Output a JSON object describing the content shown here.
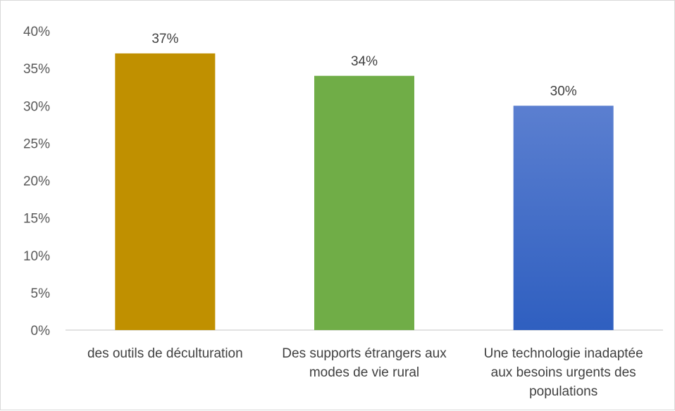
{
  "chart_data": {
    "type": "bar",
    "categories": [
      [
        "des outils de déculturation"
      ],
      [
        "Des supports étrangers aux",
        "modes de vie rural"
      ],
      [
        "Une technologie inadaptée",
        "aux besoins urgents des",
        "populations"
      ]
    ],
    "values": [
      0.37,
      0.34,
      0.3
    ],
    "data_labels": [
      "37%",
      "34%",
      "30%"
    ],
    "bar_colors": [
      {
        "top": "#c09000",
        "bottom": "#c09000"
      },
      {
        "top": "#70ad47",
        "bottom": "#70ad47"
      },
      {
        "top": "#5b7fd0",
        "bottom": "#2f5fc0"
      }
    ],
    "y_ticks": [
      0,
      0.05,
      0.1,
      0.15,
      0.2,
      0.25,
      0.3,
      0.35,
      0.4
    ],
    "y_tick_labels": [
      "0%",
      "5%",
      "10%",
      "15%",
      "20%",
      "25%",
      "30%",
      "35%",
      "40%"
    ],
    "ylim": [
      0,
      0.4
    ],
    "grid": false,
    "title": "",
    "xlabel": "",
    "ylabel": ""
  }
}
